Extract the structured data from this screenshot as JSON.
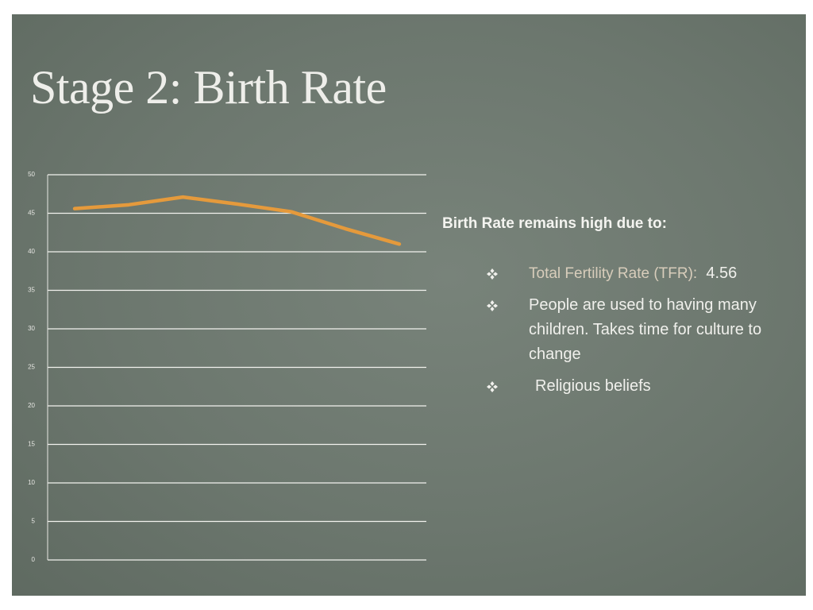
{
  "title": "Stage 2: Birth Rate",
  "chart_data": {
    "type": "line",
    "categories": [
      null,
      null,
      null,
      null,
      null,
      null,
      null
    ],
    "series": [
      {
        "color": "#e59a3c",
        "values": [
          45.6,
          46.1,
          47.1,
          46.2,
          45.2,
          43.0,
          41.0
        ]
      }
    ],
    "ylim": [
      0,
      50
    ],
    "yticks": [
      0,
      5,
      10,
      15,
      20,
      25,
      30,
      35,
      40,
      45,
      50
    ],
    "grid": true
  },
  "heading": "Birth Rate remains high due to:",
  "bullets": [
    {
      "label": "Total Fertility Rate (TFR):",
      "value": 4.56
    },
    {
      "text": "People are used to having many children. Takes time for culture to change"
    },
    {
      "text": "Religious beliefs"
    }
  ]
}
